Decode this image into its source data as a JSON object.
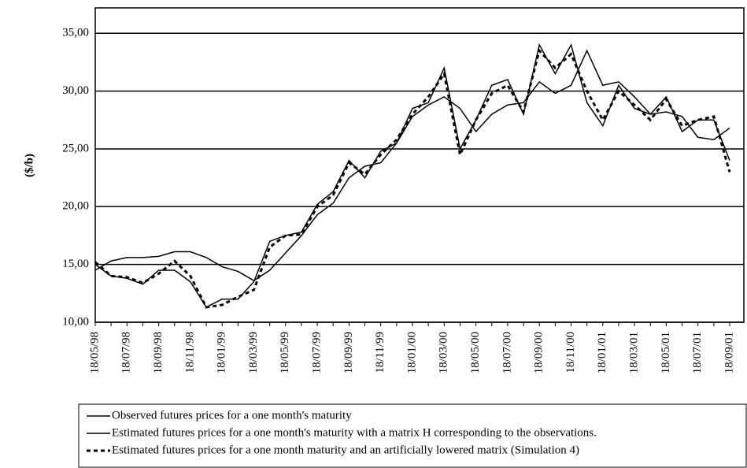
{
  "chart_data": {
    "type": "line",
    "y_label": "($/b)",
    "categories": [
      "18/05/98",
      null,
      "18/07/98",
      null,
      "18/09/98",
      null,
      "18/11/98",
      null,
      "18/01/99",
      null,
      "18/03/99",
      null,
      "18/05/99",
      null,
      "18/07/99",
      null,
      "18/09/99",
      null,
      "18/11/99",
      null,
      "18/01/00",
      null,
      "18/03/00",
      null,
      "18/05/00",
      null,
      "18/07/00",
      null,
      "18/09/00",
      null,
      "18/11/00",
      null,
      "18/01/01",
      null,
      "18/03/01",
      null,
      "18/05/01",
      null,
      "18/07/01",
      null,
      "18/09/01"
    ],
    "series": [
      {
        "name": "Observed futures prices for a one month's maturity",
        "color": "#000000",
        "dash": "solid",
        "values": [
          15,
          14,
          13.8,
          13.3,
          14.5,
          14.5,
          13.5,
          11.3,
          12,
          12,
          13.5,
          17,
          17.5,
          17.8,
          20.2,
          21.3,
          24,
          22.5,
          24.8,
          25.5,
          28.5,
          29,
          32,
          25,
          27.5,
          30.5,
          31,
          28,
          34,
          31.5,
          34,
          29,
          27,
          30.5,
          28.5,
          28,
          29.5,
          26.5,
          27.5,
          27.5,
          24
        ]
      },
      {
        "name": "Estimated futures prices for a one month's maturity with a matrix H corresponding to the observations.",
        "color": "#000000",
        "dash": "solid",
        "values": [
          14.5,
          15.3,
          15.6,
          15.6,
          15.7,
          16.1,
          16.1,
          15.6,
          14.8,
          14.4,
          13.6,
          14.5,
          16,
          17.5,
          19.3,
          20.3,
          22.5,
          23.5,
          23.8,
          25.5,
          27.8,
          28.8,
          29.5,
          28.5,
          26.5,
          28,
          28.8,
          29,
          30.8,
          29.8,
          30.5,
          33.5,
          30.5,
          30.8,
          29.5,
          28,
          28.2,
          27.8,
          26,
          25.8,
          26.8
        ]
      },
      {
        "name": "Estimated futures prices for a one month maturity and an artificially lowered matrix  (Simulation 4)",
        "color": "#000000",
        "dash": "dashed",
        "values": [
          15.2,
          14,
          13.9,
          13.4,
          14.2,
          15.3,
          14,
          11.3,
          11.5,
          12.2,
          12.8,
          16.5,
          17.5,
          17.6,
          20,
          21,
          23.8,
          22.8,
          24.5,
          25.8,
          28,
          29.5,
          31.5,
          24.5,
          27.5,
          29.8,
          30.5,
          28.2,
          33.5,
          32,
          33.2,
          30,
          27.5,
          30,
          28.8,
          27.5,
          29.3,
          27,
          27.5,
          27.8,
          23
        ]
      }
    ],
    "ylim": [
      10,
      37.2
    ],
    "yticks": [
      {
        "value": 10,
        "label": "10,00"
      },
      {
        "value": 15,
        "label": "15,00"
      },
      {
        "value": 20,
        "label": "20,00"
      },
      {
        "value": 25,
        "label": "25,00"
      },
      {
        "value": 30,
        "label": "30,00"
      },
      {
        "value": 35,
        "label": "35,00"
      }
    ],
    "grid": true
  }
}
